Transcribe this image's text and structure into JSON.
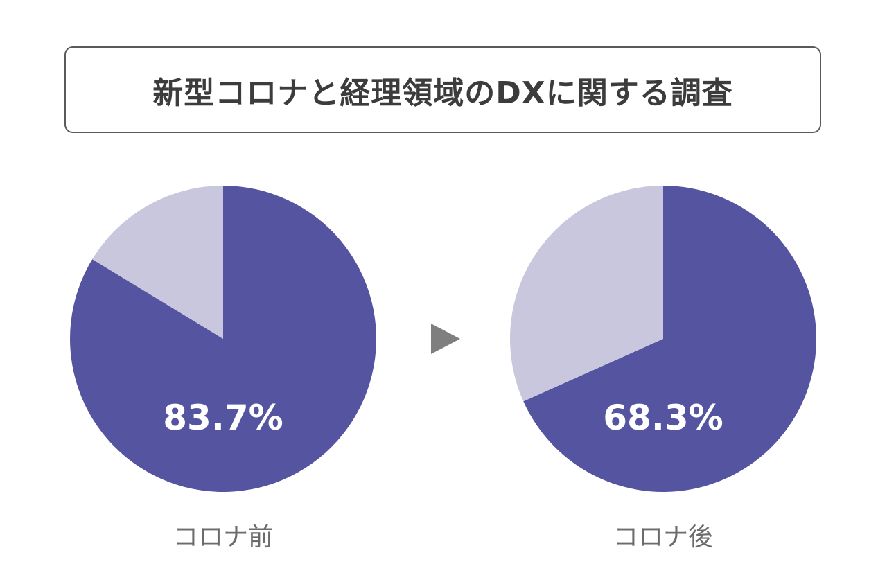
{
  "title": "新型コロナと経理領域のDXに関する調査",
  "colors": {
    "primary": "#5454a1",
    "secondary": "#c8c7dd",
    "arrow": "#7f7f7f"
  },
  "chart_data": [
    {
      "type": "pie",
      "caption": "コロナ前",
      "slices": [
        {
          "value": 83.7,
          "label": "83.7%"
        },
        {
          "value": 16.3,
          "label": ""
        }
      ]
    },
    {
      "type": "pie",
      "caption": "コロナ後",
      "slices": [
        {
          "value": 68.3,
          "label": "68.3%"
        },
        {
          "value": 31.7,
          "label": ""
        }
      ]
    }
  ]
}
